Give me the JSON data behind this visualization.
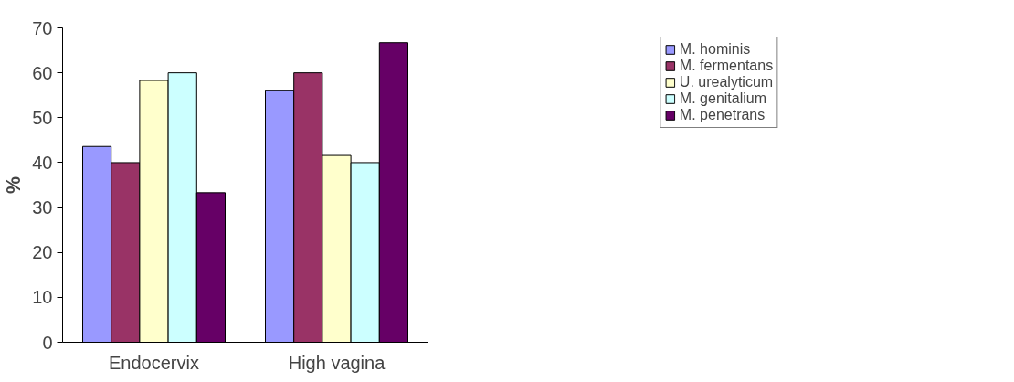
{
  "chart_data": {
    "type": "bar",
    "ylabel": "%",
    "categories": [
      "Endocervix",
      "High vagina"
    ],
    "series": [
      {
        "name": "M. hominis",
        "color": "#9999ff",
        "values": [
          43.6,
          56.0
        ]
      },
      {
        "name": "M. fermentans",
        "color": "#993366",
        "values": [
          40.0,
          60.0
        ]
      },
      {
        "name": "U. urealyticum",
        "color": "#ffffcc",
        "values": [
          58.3,
          41.6
        ]
      },
      {
        "name": "M. genitalium",
        "color": "#ccffff",
        "values": [
          60.0,
          40.0
        ]
      },
      {
        "name": "M. penetrans",
        "color": "#660066",
        "values": [
          33.3,
          66.7
        ]
      }
    ],
    "ylim": [
      0,
      70
    ],
    "yticks": [
      0,
      10,
      20,
      30,
      40,
      50,
      60,
      70
    ],
    "grid": false,
    "legend": "top right"
  }
}
